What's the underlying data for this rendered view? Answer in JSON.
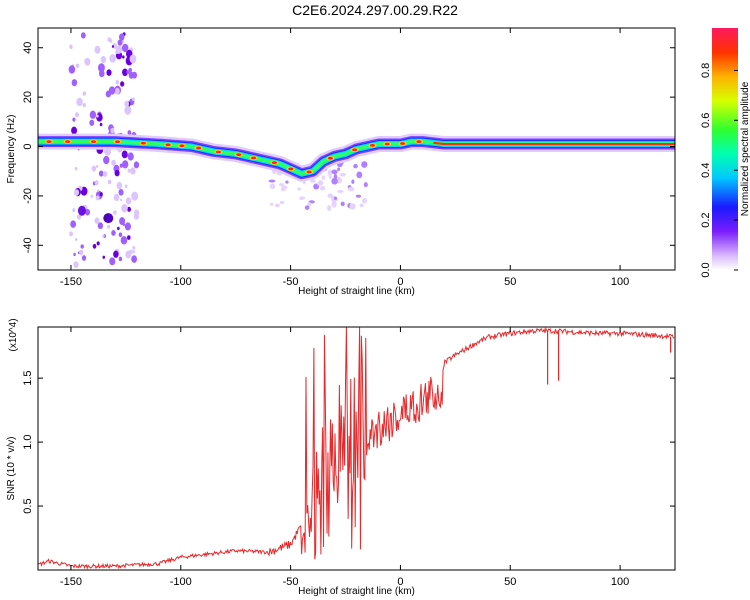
{
  "title": "C2E6.2024.297.00.29.R22",
  "chart_data": [
    {
      "type": "heatmap",
      "xlabel": "Height of straight line (km)",
      "ylabel": "Frequency (Hz)",
      "xlim": [
        -165,
        125
      ],
      "ylim": [
        -50,
        48
      ],
      "x_ticks": [
        -150,
        -100,
        -50,
        0,
        50,
        100
      ],
      "y_ticks": [
        -40,
        -20,
        0,
        20,
        40
      ],
      "colorbar": {
        "label": "Normalized spectral amplitude",
        "range": [
          0,
          0.97
        ],
        "ticks": [
          "0.0",
          "0.2",
          "0.4",
          "0.6",
          "0.8"
        ]
      },
      "ridge": {
        "x": [
          -165,
          -150,
          -130,
          -110,
          -95,
          -85,
          -75,
          -65,
          -55,
          -50,
          -45,
          -40,
          -35,
          -30,
          -25,
          -20,
          -15,
          -10,
          -5,
          0,
          5,
          10,
          20,
          125
        ],
        "y": [
          2,
          2,
          2,
          1,
          0,
          -2,
          -3,
          -5,
          -7,
          -9,
          -11,
          -10,
          -6,
          -4,
          -3,
          -1,
          0,
          1,
          1,
          1,
          2,
          2,
          1,
          1
        ]
      }
    },
    {
      "type": "line",
      "xlabel": "Height of straight line (km)",
      "ylabel": "SNR (10 * v/v)",
      "y_multiplier": "(x10^4)",
      "xlim": [
        -165,
        125
      ],
      "ylim": [
        0,
        1.9
      ],
      "x_ticks": [
        -150,
        -100,
        -50,
        0,
        50,
        100
      ],
      "y_ticks": [
        0.5,
        1.0,
        1.5
      ],
      "y_tick_labels": [
        "0.5",
        "1.0",
        "1.5"
      ],
      "color": "#e8282a",
      "series_envelope": {
        "x": [
          -165,
          -160,
          -150,
          -130,
          -110,
          -100,
          -90,
          -75,
          -60,
          -50,
          -45,
          -40,
          -35,
          -30,
          -25,
          -20,
          -15,
          -10,
          -5,
          0,
          5,
          10,
          15,
          20,
          25,
          30,
          35,
          40,
          50,
          60,
          70,
          80,
          90,
          100,
          110,
          120,
          125
        ],
        "y": [
          0.04,
          0.07,
          0.03,
          0.03,
          0.05,
          0.1,
          0.12,
          0.15,
          0.14,
          0.2,
          0.35,
          0.55,
          0.75,
          0.9,
          1.0,
          1.1,
          1.2,
          1.3,
          1.35,
          1.4,
          1.45,
          1.5,
          1.55,
          1.62,
          1.68,
          1.73,
          1.78,
          1.82,
          1.85,
          1.87,
          1.87,
          1.86,
          1.85,
          1.85,
          1.84,
          1.83,
          1.82
        ]
      },
      "dips": [
        {
          "x": 67,
          "y": 1.45
        },
        {
          "x": 72,
          "y": 1.48
        },
        {
          "x": 123,
          "y": 1.7
        }
      ]
    }
  ]
}
